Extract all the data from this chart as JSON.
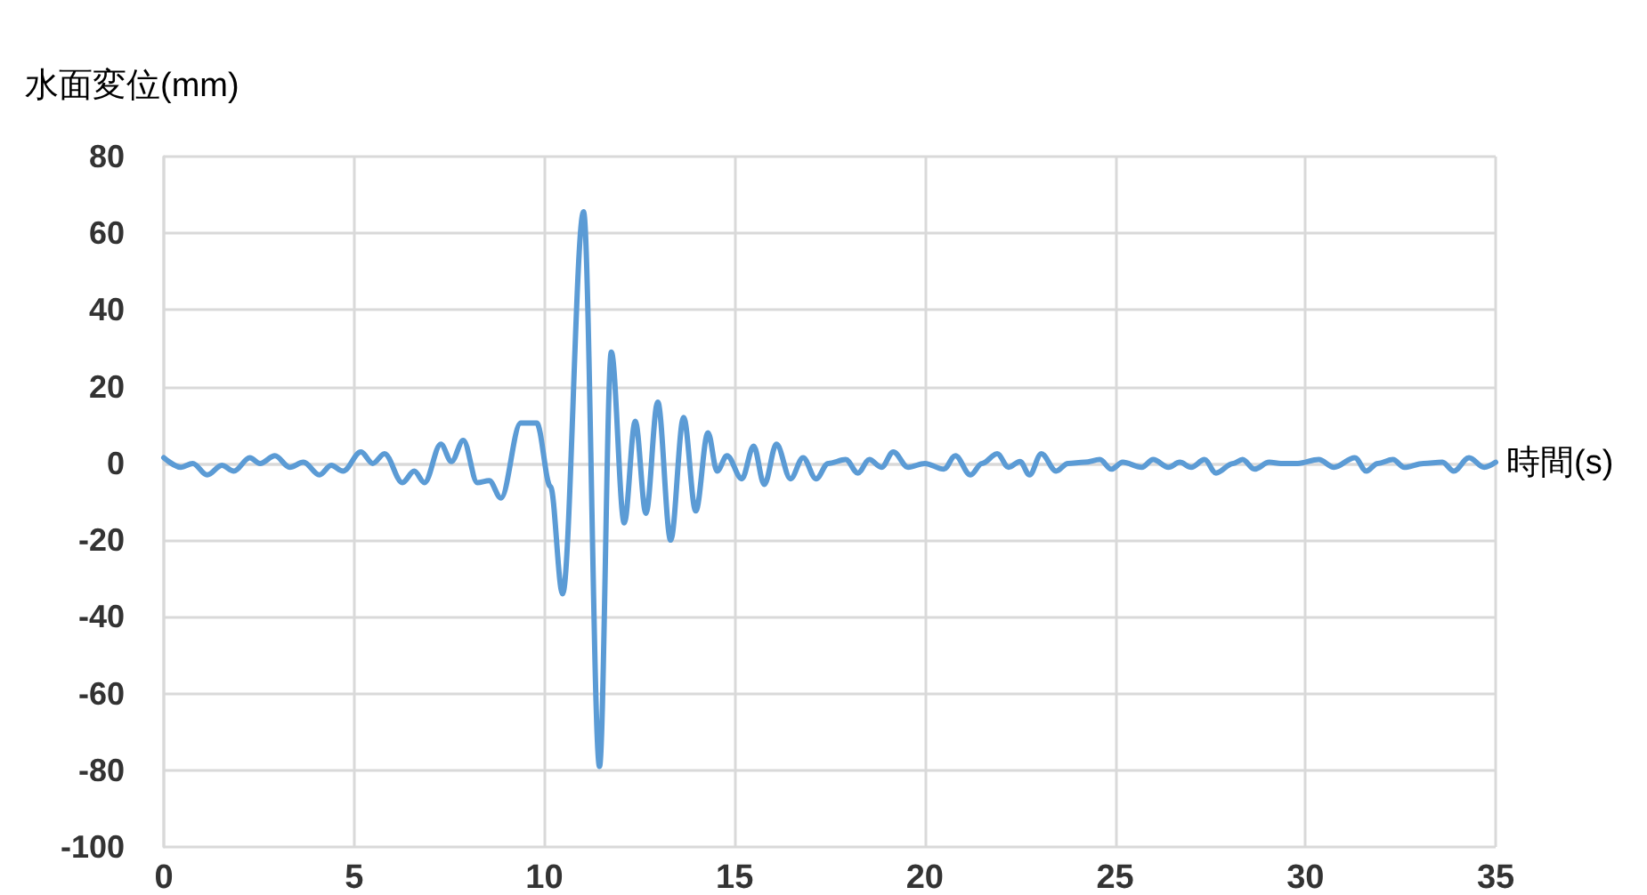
{
  "chart_data": {
    "type": "line",
    "xlabel": "時間(s)",
    "ylabel": "水面変位(mm)",
    "xlim": [
      0,
      35
    ],
    "xticks": [
      0,
      5,
      10,
      15,
      20,
      25,
      30,
      35
    ],
    "ylim": [
      -100,
      80
    ],
    "yticks": [
      -100,
      -80,
      -60,
      -40,
      -20,
      0,
      20,
      40,
      60,
      80
    ],
    "grid": true,
    "marker": "none",
    "line_style": "solid",
    "series": [
      {
        "color": "#5b9bd5",
        "x": [
          0,
          0.45,
          0.76,
          1.14,
          1.53,
          1.84,
          2.26,
          2.53,
          2.92,
          3.31,
          3.67,
          4.09,
          4.4,
          4.71,
          5.18,
          5.49,
          5.8,
          6.27,
          6.58,
          6.85,
          7.28,
          7.56,
          7.87,
          8.24,
          8.55,
          8.86,
          9.38,
          9.8,
          10.16,
          10.48,
          11.03,
          11.45,
          11.76,
          12.1,
          12.39,
          12.67,
          12.98,
          13.32,
          13.66,
          13.98,
          14.3,
          14.54,
          14.8,
          15.19,
          15.5,
          15.78,
          16.1,
          16.47,
          16.8,
          17.14,
          17.46,
          17.92,
          18.24,
          18.54,
          18.86,
          19.17,
          19.56,
          20,
          20.5,
          20.8,
          21.2,
          21.5,
          21.9,
          22.2,
          22.5,
          22.75,
          23.06,
          23.45,
          23.76,
          24.2,
          24.6,
          24.9,
          25.2,
          25.7,
          26,
          26.4,
          26.7,
          27,
          27.35,
          27.65,
          28.1,
          28.35,
          28.66,
          29.05,
          29.36,
          29.8,
          30.35,
          30.75,
          31.3,
          31.6,
          31.9,
          32.3,
          32.6,
          33.1,
          33.6,
          33.9,
          34.3,
          34.7,
          35
        ],
        "values": [
          1.5,
          -1,
          0,
          -3,
          -0.5,
          -2,
          1.5,
          0,
          2,
          -1,
          0.3,
          -3,
          -0.5,
          -2,
          3,
          0,
          2.5,
          -5,
          -2,
          -5,
          5,
          0.5,
          6,
          -5,
          -4.5,
          -9,
          10.5,
          10.5,
          -6,
          -34,
          65.6,
          -79,
          29,
          -15.5,
          11,
          -13,
          16,
          -20,
          12,
          -12.4,
          8,
          -2,
          2,
          -4,
          4.5,
          -5.5,
          5,
          -4,
          1.5,
          -4,
          0,
          1,
          -2.5,
          1,
          -1,
          3,
          -1,
          0,
          -1.5,
          2,
          -3,
          0,
          2.5,
          -1,
          0.5,
          -3,
          2.5,
          -2,
          0,
          0.3,
          1,
          -1.5,
          0.3,
          -1,
          1,
          -1,
          0.3,
          -1,
          1,
          -2.5,
          0,
          1,
          -1.5,
          0.3,
          0,
          0,
          1,
          -1,
          1.5,
          -2,
          0,
          1,
          -1,
          0,
          0.3,
          -2,
          1.5,
          -1,
          0.3
        ]
      }
    ]
  }
}
